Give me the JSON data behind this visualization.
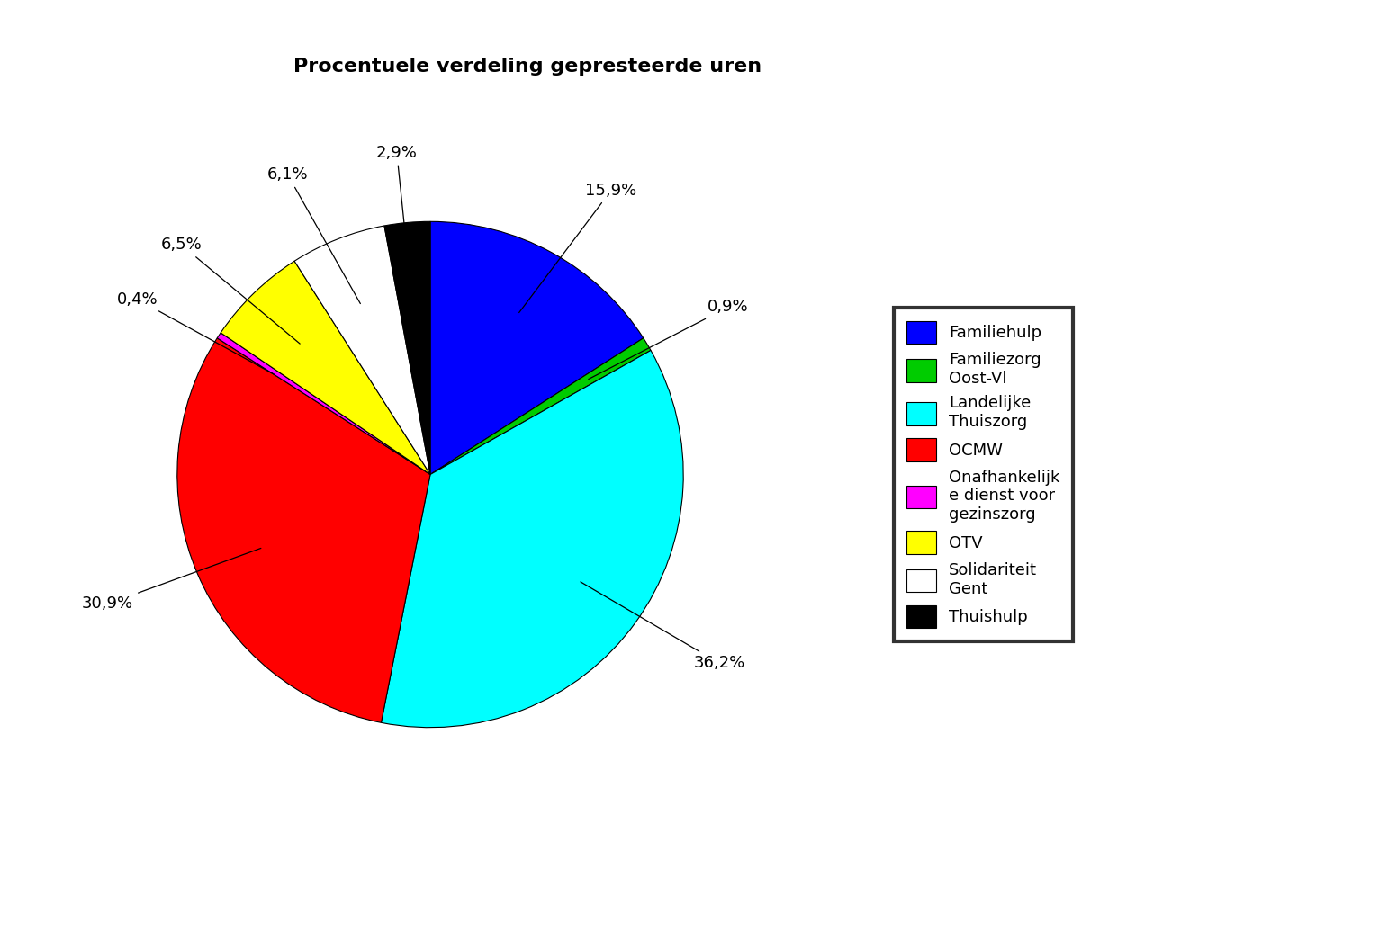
{
  "title": "Procentuele verdeling gepresteerde uren",
  "slices": [
    {
      "label": "Familiehulp",
      "value": 15.9,
      "color": "#0000FF"
    },
    {
      "label": "Familiezorg Oost-Vl",
      "value": 0.9,
      "color": "#00CC00"
    },
    {
      "label": "Landelijke Thuiszorg",
      "value": 36.2,
      "color": "#00FFFF"
    },
    {
      "label": "OCMW",
      "value": 30.9,
      "color": "#FF0000"
    },
    {
      "label": "Onafhankelijke dienst voor gezinszorg",
      "value": 0.4,
      "color": "#FF00FF"
    },
    {
      "label": "OTV",
      "value": 6.5,
      "color": "#FFFF00"
    },
    {
      "label": "Solidariteit Gent",
      "value": 6.1,
      "color": "#FFFFFF"
    },
    {
      "label": "Thuishulp",
      "value": 2.9,
      "color": "#000000"
    }
  ],
  "legend_labels": [
    "Familiehulp",
    "Familiezorg\nOost-Vl",
    "Landelijke\nThuiszorg",
    "OCMW",
    "Onafhankelijk\ne dienst voor\ngezinszorg",
    "OTV",
    "Solidariteit\nGent",
    "Thuishulp"
  ],
  "pct_labels": [
    "15,9%",
    "0,9%",
    "36,2%",
    "30,9%",
    "0,4%",
    "6,5%",
    "6,1%",
    "2,9%"
  ],
  "title_fontsize": 16,
  "label_fontsize": 13,
  "legend_fontsize": 13
}
